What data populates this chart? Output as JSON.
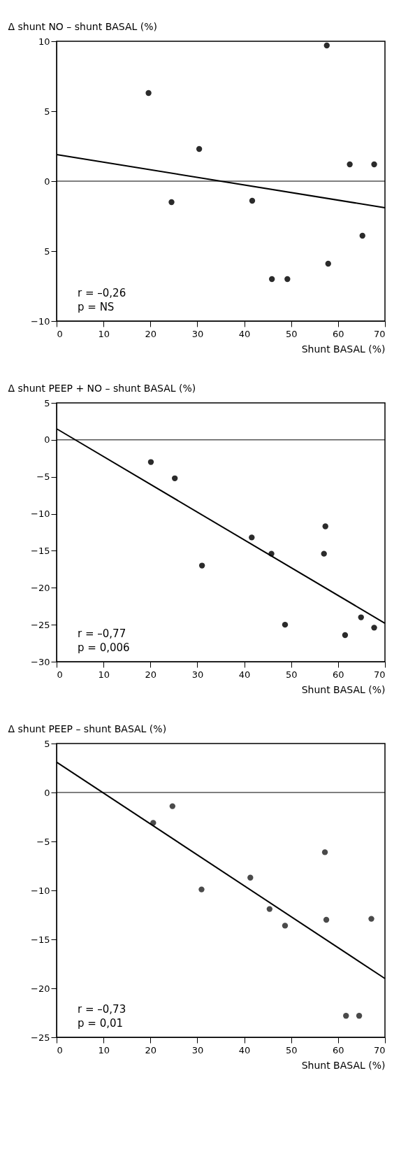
{
  "chart_data": [
    {
      "type": "scatter",
      "ylabel": "Δ shunt NO – shunt BASAL (%)",
      "xlabel": "Shunt BASAL (%)",
      "xlim": [
        0,
        70
      ],
      "xticks": [
        0,
        10,
        20,
        30,
        40,
        50,
        60,
        70
      ],
      "ylim": [
        -10,
        10
      ],
      "yticks": [
        10,
        5,
        0,
        {
          "value": -5,
          "label": "5"
        },
        -10
      ],
      "series": [
        {
          "marker": "circle",
          "color": "#2b2b2b",
          "x": [
            19.6,
            24.5,
            30.4,
            41.7,
            45.9,
            49.2,
            57.6,
            57.9,
            62.5,
            65.2,
            67.7
          ],
          "values": [
            6.3,
            -1.5,
            2.3,
            -1.4,
            -7.0,
            -7.0,
            9.7,
            -5.9,
            1.2,
            -3.9,
            1.2
          ]
        },
        {
          "type": "line",
          "marker": "none",
          "color": "#000000",
          "line_style": "solid",
          "x": [
            0,
            70
          ],
          "values": [
            1.9,
            -1.9
          ]
        }
      ],
      "ref_lines": [
        {
          "axis": "y",
          "value": 0
        }
      ],
      "annotations": [
        "r = –0,26",
        "p = NS"
      ]
    },
    {
      "type": "scatter",
      "ylabel": "Δ shunt PEEP + NO – shunt BASAL (%)",
      "xlabel": "Shunt BASAL (%)",
      "xlim": [
        0,
        70
      ],
      "xticks": [
        0,
        10,
        20,
        30,
        40,
        50,
        60,
        70
      ],
      "ylim": [
        -30,
        5
      ],
      "yticks": [
        5,
        0,
        -5,
        -10,
        -15,
        -20,
        -25,
        -30
      ],
      "series": [
        {
          "marker": "circle",
          "color": "#2b2b2b",
          "x": [
            20.1,
            25.2,
            31.0,
            41.6,
            45.8,
            48.7,
            57.3,
            57.0,
            61.5,
            64.9,
            67.7
          ],
          "values": [
            -3.0,
            -5.2,
            -17.0,
            -13.2,
            -15.4,
            -25.0,
            -11.7,
            -15.4,
            -26.4,
            -24.0,
            -25.4
          ]
        },
        {
          "type": "line",
          "marker": "none",
          "color": "#000000",
          "line_style": "solid",
          "x": [
            0,
            70
          ],
          "values": [
            1.5,
            -24.8
          ]
        }
      ],
      "ref_lines": [
        {
          "axis": "y",
          "value": 0
        }
      ],
      "annotations": [
        "r = –0,77",
        "p = 0,006"
      ]
    },
    {
      "type": "scatter",
      "ylabel": "Δ shunt PEEP – shunt BASAL (%)",
      "xlabel": "Shunt BASAL (%)",
      "xlim": [
        0,
        70
      ],
      "xticks": [
        0,
        10,
        20,
        30,
        40,
        50,
        60,
        70
      ],
      "ylim": [
        -25,
        5
      ],
      "yticks": [
        5,
        0,
        -5,
        -10,
        -15,
        -20,
        -25
      ],
      "series": [
        {
          "marker": "circle",
          "color": "#4a4a4a",
          "x": [
            20.6,
            24.7,
            30.9,
            41.3,
            45.4,
            48.7,
            57.2,
            57.5,
            61.7,
            64.5,
            67.1
          ],
          "values": [
            -3.1,
            -1.4,
            -9.9,
            -8.7,
            -11.9,
            -13.6,
            -6.1,
            -13.0,
            -22.8,
            -22.8,
            -12.9
          ]
        },
        {
          "type": "line",
          "marker": "none",
          "color": "#000000",
          "line_style": "solid",
          "x": [
            0,
            70
          ],
          "values": [
            3.1,
            -19.0
          ]
        }
      ],
      "ref_lines": [
        {
          "axis": "y",
          "value": 0
        }
      ],
      "annotations": [
        "r = –0,73",
        "p = 0,01"
      ]
    }
  ]
}
